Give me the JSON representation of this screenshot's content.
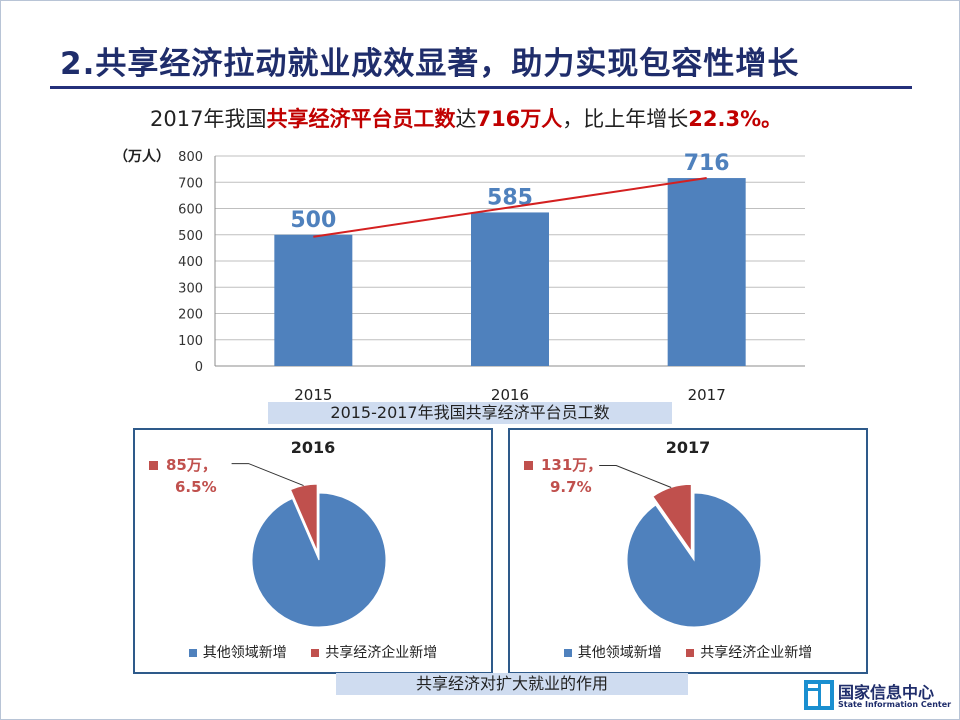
{
  "slide": {
    "title": "2.共享经济拉动就业成效显著，助力实现包容性增长",
    "headline": {
      "p1": "2017年我国",
      "p2": "共享经济平台员工数",
      "p3": "达",
      "p4": "716万人",
      "p5": "，比上年增长",
      "p6": "22.3%。"
    },
    "caption_bar": "2015-2017年我国共享经济平台员工数",
    "caption_pies": "共享经济对扩大就业的作用",
    "logo": {
      "cn": "国家信息中心",
      "en": "State Information Center"
    }
  },
  "colors": {
    "bar": "#4f81bd",
    "red": "#c00000",
    "slice_other": "#4f81bd",
    "slice_share": "#c0504d",
    "title": "#1f2d6b"
  },
  "chart_data": [
    {
      "type": "bar",
      "title": "2015-2017年我国共享经济平台员工数",
      "ylabel": "（万人）",
      "categories": [
        "2015",
        "2016",
        "2017"
      ],
      "values": [
        500,
        585,
        716
      ],
      "data_labels": [
        "500",
        "585",
        "716"
      ],
      "ylim": [
        0,
        800
      ],
      "yticks": [
        0,
        100,
        200,
        300,
        400,
        500,
        600,
        700,
        800
      ],
      "grid": true,
      "trendline": true
    },
    {
      "type": "pie",
      "title": "2016",
      "categories": [
        "其他领域新增",
        "共享经济企业新增"
      ],
      "values": [
        93.5,
        6.5
      ],
      "label": {
        "line1": "85万，",
        "line2": "6.5%"
      }
    },
    {
      "type": "pie",
      "title": "2017",
      "categories": [
        "其他领域新增",
        "共享经济企业新增"
      ],
      "values": [
        90.3,
        9.7
      ],
      "label": {
        "line1": "131万，",
        "line2": "9.7%"
      }
    }
  ]
}
